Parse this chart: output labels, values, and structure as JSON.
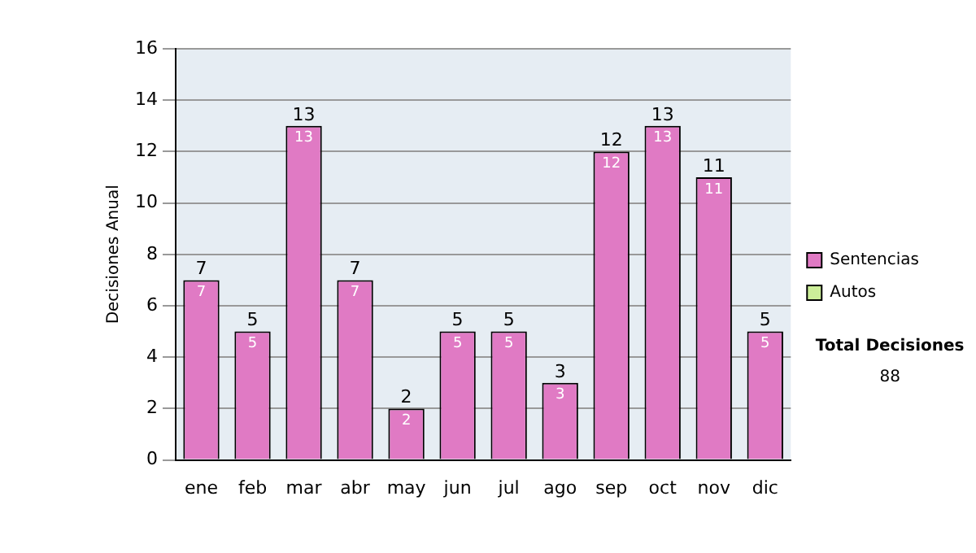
{
  "chart_data": {
    "type": "bar",
    "stacked": true,
    "ylabel": "Decisiones Anual",
    "categories": [
      "ene",
      "feb",
      "mar",
      "abr",
      "may",
      "jun",
      "jul",
      "ago",
      "sep",
      "oct",
      "nov",
      "dic"
    ],
    "series": [
      {
        "name": "Sentencias",
        "color": "#e07ac4",
        "values": [
          7,
          5,
          13,
          7,
          2,
          5,
          5,
          3,
          12,
          13,
          11,
          5
        ],
        "value_labels": [
          "7",
          "5",
          "13",
          "7",
          "2",
          "5",
          "5",
          "3",
          "12",
          "13",
          "11",
          "5"
        ]
      },
      {
        "name": "Autos",
        "color": "#ccee99",
        "values": [
          0,
          0,
          0,
          0,
          0,
          0,
          0,
          0,
          0,
          0,
          0,
          0
        ]
      }
    ],
    "totals": [
      "7",
      "5",
      "13",
      "7",
      "2",
      "5",
      "5",
      "3",
      "12",
      "13",
      "11",
      "5"
    ],
    "ylim": [
      0,
      16
    ],
    "yticks": [
      0,
      2,
      4,
      6,
      8,
      10,
      12,
      14,
      16
    ],
    "grid": "y",
    "legend": "right",
    "annotations": [
      "Total Decisiones",
      "88"
    ]
  }
}
